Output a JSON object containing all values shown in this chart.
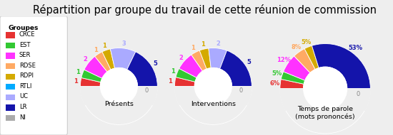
{
  "title": "Répartition par groupe du travail de cette réunion de commission",
  "groups": [
    "CRCE",
    "EST",
    "SER",
    "RDSE",
    "RDPI",
    "RTLI",
    "UC",
    "LR",
    "NI"
  ],
  "colors": [
    "#e63232",
    "#32c832",
    "#ff32ff",
    "#ffaa64",
    "#d4aa00",
    "#00aaff",
    "#aaaaff",
    "#1414aa",
    "#aaaaaa"
  ],
  "presences": [
    1,
    1,
    2,
    1,
    1,
    0,
    3,
    5,
    0
  ],
  "interventions": [
    1,
    1,
    2,
    1,
    1,
    0,
    2,
    5,
    0
  ],
  "temps_parole_pct": [
    6,
    5,
    12,
    8,
    5,
    0,
    0,
    53,
    0
  ],
  "legend_title": "Groupes",
  "chart_labels": [
    "Présents",
    "Interventions",
    "Temps de parole\n(mots prononcés)"
  ],
  "background_color": "#eeeeee",
  "title_fontsize": 10.5
}
